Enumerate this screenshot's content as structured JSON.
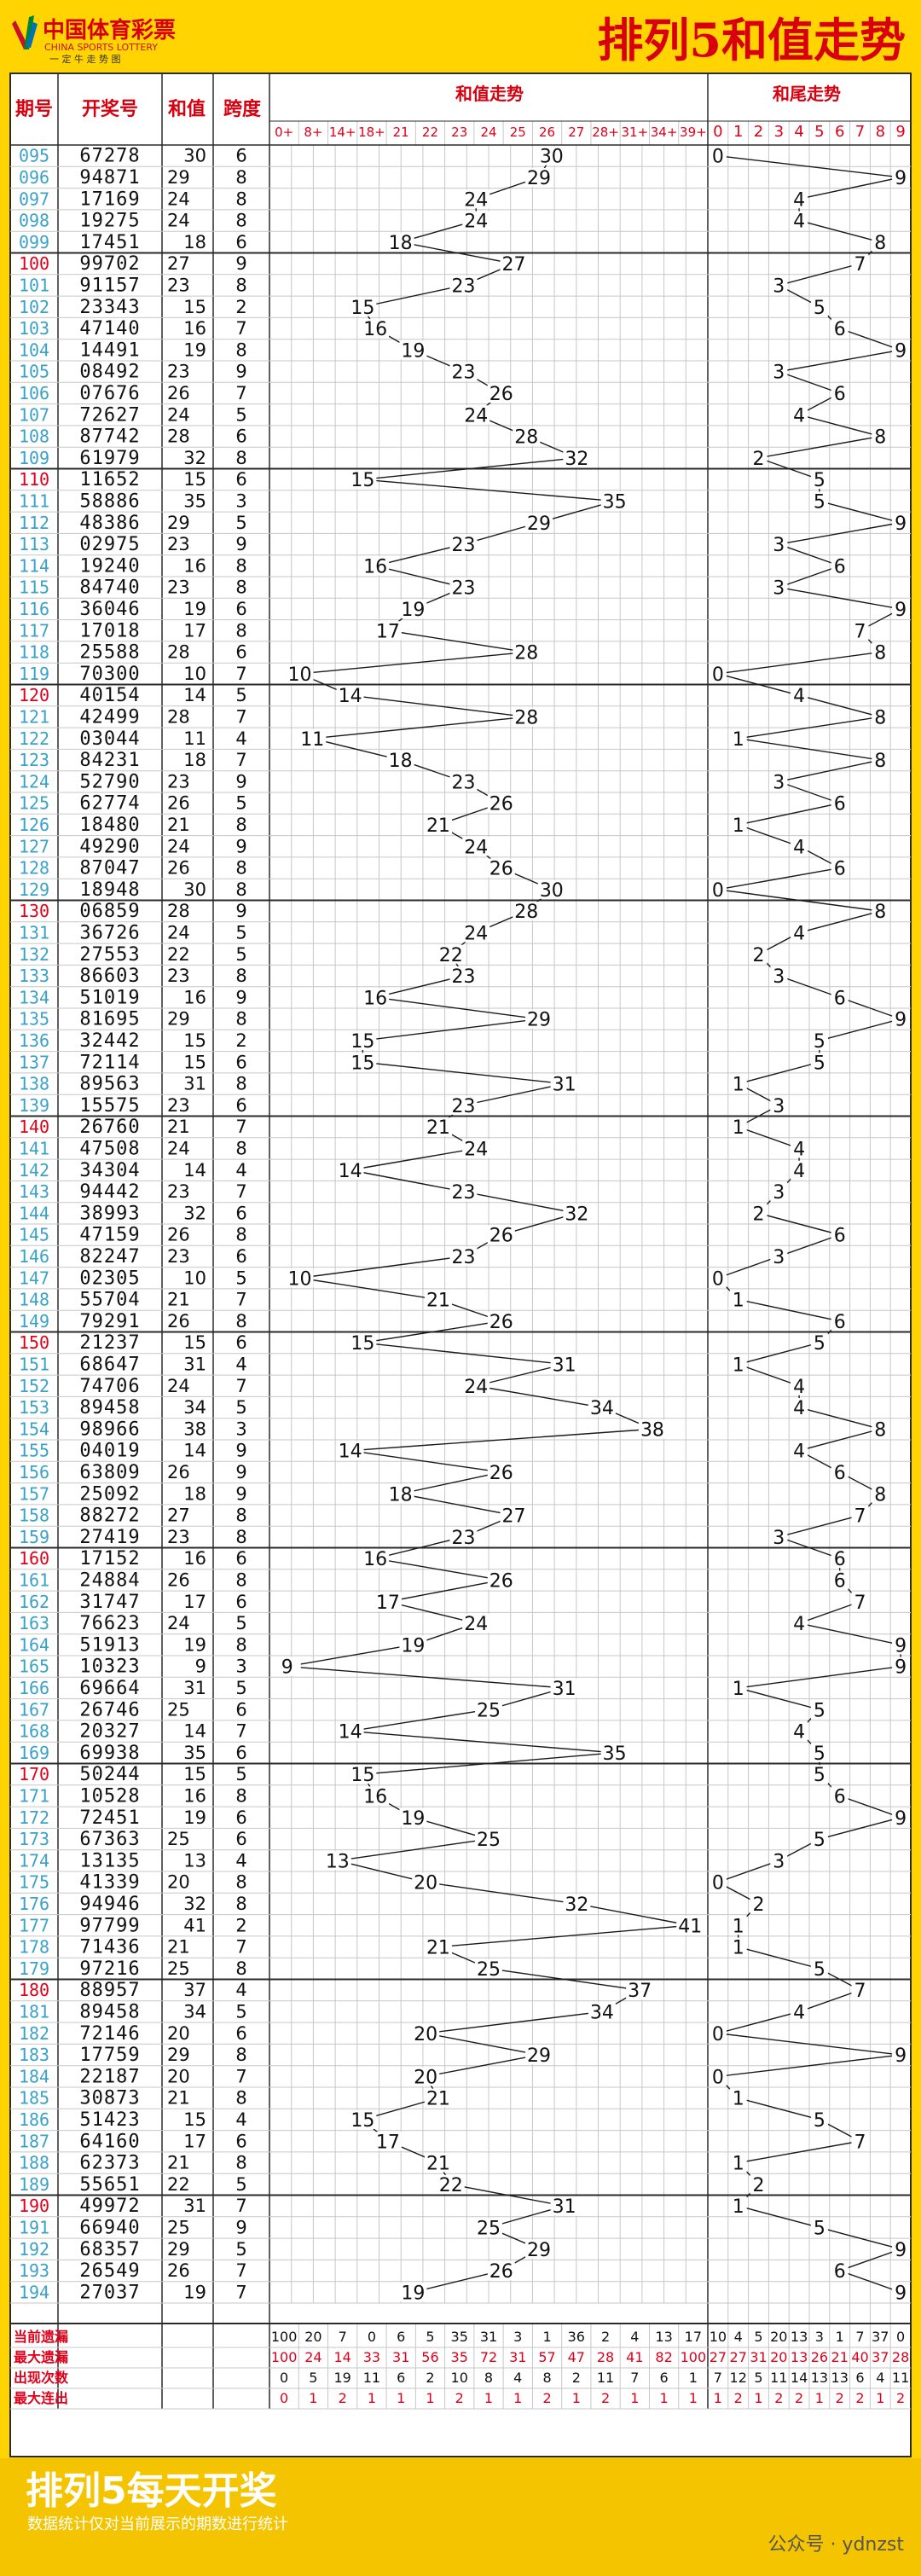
{
  "header": {
    "logo_cn": "中国体育彩票",
    "logo_en": "CHINA SPORTS LOTTERY",
    "logo_slogan": "一 定 牛 走 势 图",
    "title": "排列5和值走势"
  },
  "table_headers": {
    "period": "期号",
    "draw": "开奖号",
    "sum": "和值",
    "span": "跨度",
    "sum_trend": "和值走势",
    "tail_trend": "和尾走势"
  },
  "sum_zones": [
    "0+",
    "8+",
    "14+",
    "18+",
    "21",
    "22",
    "23",
    "24",
    "25",
    "26",
    "27",
    "28+",
    "31+",
    "34+",
    "39+"
  ],
  "tail_zones": [
    "0",
    "1",
    "2",
    "3",
    "4",
    "5",
    "6",
    "7",
    "8",
    "9"
  ],
  "chart_data": {
    "type": "line",
    "periods": [
      "095",
      "096",
      "097",
      "098",
      "099",
      "100",
      "101",
      "102",
      "103",
      "104",
      "105",
      "106",
      "107",
      "108",
      "109",
      "110",
      "111",
      "112",
      "113",
      "114",
      "115",
      "116",
      "117",
      "118",
      "119",
      "120",
      "121",
      "122",
      "123",
      "124",
      "125",
      "126",
      "127",
      "128",
      "129",
      "130",
      "131",
      "132",
      "133",
      "134",
      "135",
      "136",
      "137",
      "138",
      "139",
      "140",
      "141",
      "142",
      "143",
      "144",
      "145",
      "146",
      "147",
      "148",
      "149",
      "150",
      "151",
      "152",
      "153",
      "154",
      "155",
      "156",
      "157",
      "158",
      "159",
      "160",
      "161",
      "162",
      "163",
      "164",
      "165",
      "166",
      "167",
      "168",
      "169",
      "170",
      "171",
      "172",
      "173",
      "174",
      "175",
      "176",
      "177",
      "178",
      "179",
      "180",
      "181",
      "182",
      "183",
      "184",
      "185",
      "186",
      "187",
      "188",
      "189",
      "190",
      "191",
      "192",
      "193",
      "194"
    ],
    "draws": [
      "67278",
      "94871",
      "17169",
      "19275",
      "17451",
      "99702",
      "91157",
      "23343",
      "47140",
      "14491",
      "08492",
      "07676",
      "72627",
      "87742",
      "61979",
      "11652",
      "58886",
      "48386",
      "02975",
      "19240",
      "84740",
      "36046",
      "17018",
      "25588",
      "70300",
      "40154",
      "42499",
      "03044",
      "84231",
      "52790",
      "62774",
      "18480",
      "49290",
      "87047",
      "18948",
      "06859",
      "36726",
      "27553",
      "86603",
      "51019",
      "81695",
      "32442",
      "72114",
      "89563",
      "15575",
      "26760",
      "47508",
      "34304",
      "94442",
      "38993",
      "47159",
      "82247",
      "02305",
      "55704",
      "79291",
      "21237",
      "68647",
      "74706",
      "89458",
      "98966",
      "04019",
      "63809",
      "25092",
      "88272",
      "27419",
      "17152",
      "24884",
      "31747",
      "76623",
      "51913",
      "10323",
      "69664",
      "26746",
      "20327",
      "69938",
      "50244",
      "10528",
      "72451",
      "67363",
      "13135",
      "41339",
      "94946",
      "97799",
      "71436",
      "97216",
      "88957",
      "89458",
      "72146",
      "17759",
      "22187",
      "30873",
      "51423",
      "64160",
      "62373",
      "55651",
      "49972",
      "66940",
      "68357",
      "26549",
      "27037"
    ],
    "sum": [
      30,
      29,
      24,
      24,
      18,
      27,
      23,
      15,
      16,
      19,
      23,
      26,
      24,
      28,
      32,
      15,
      35,
      29,
      23,
      16,
      23,
      19,
      17,
      28,
      10,
      14,
      28,
      11,
      18,
      23,
      26,
      21,
      24,
      26,
      30,
      28,
      24,
      22,
      23,
      16,
      29,
      15,
      15,
      31,
      23,
      21,
      24,
      14,
      23,
      32,
      26,
      23,
      10,
      21,
      26,
      15,
      31,
      24,
      34,
      38,
      14,
      26,
      18,
      27,
      23,
      16,
      26,
      17,
      24,
      19,
      9,
      31,
      25,
      14,
      35,
      15,
      16,
      19,
      25,
      13,
      20,
      32,
      41,
      21,
      25,
      37,
      34,
      20,
      29,
      20,
      21,
      15,
      17,
      21,
      22,
      31,
      25,
      29,
      26,
      19
    ],
    "span": [
      6,
      8,
      8,
      8,
      6,
      9,
      8,
      2,
      7,
      8,
      9,
      7,
      5,
      6,
      8,
      6,
      3,
      5,
      9,
      8,
      8,
      6,
      8,
      6,
      7,
      5,
      7,
      4,
      7,
      9,
      5,
      8,
      9,
      8,
      8,
      9,
      5,
      5,
      8,
      9,
      8,
      2,
      6,
      8,
      6,
      7,
      8,
      4,
      7,
      6,
      8,
      6,
      5,
      7,
      8,
      6,
      4,
      7,
      5,
      3,
      9,
      9,
      9,
      8,
      8,
      6,
      8,
      6,
      5,
      8,
      3,
      5,
      6,
      7,
      6,
      5,
      8,
      6,
      6,
      4,
      8,
      8,
      2,
      7,
      8,
      4,
      5,
      6,
      8,
      7,
      8,
      4,
      6,
      8,
      5,
      7,
      9,
      5,
      7,
      7
    ],
    "tail": [
      0,
      9,
      4,
      4,
      8,
      7,
      3,
      5,
      6,
      9,
      3,
      6,
      4,
      8,
      2,
      5,
      5,
      9,
      3,
      6,
      3,
      9,
      7,
      8,
      0,
      4,
      8,
      1,
      8,
      3,
      6,
      1,
      4,
      6,
      0,
      8,
      4,
      2,
      3,
      6,
      9,
      5,
      5,
      1,
      3,
      1,
      4,
      4,
      3,
      2,
      6,
      3,
      0,
      1,
      6,
      5,
      1,
      4,
      4,
      8,
      4,
      6,
      8,
      7,
      3,
      6,
      6,
      7,
      4,
      9,
      9,
      1,
      5,
      4,
      5,
      5,
      6,
      9,
      5,
      3,
      0,
      2,
      1,
      1,
      5,
      7,
      4,
      0,
      9,
      0,
      1,
      5,
      7,
      1,
      2,
      1,
      5,
      9,
      6,
      9
    ],
    "stats": [
      {
        "label": "当前遗漏",
        "sum": [
          100,
          20,
          7,
          0,
          6,
          5,
          35,
          31,
          3,
          1,
          36,
          2,
          4,
          13,
          17
        ],
        "tail": [
          10,
          4,
          5,
          20,
          13,
          3,
          1,
          7,
          37,
          0
        ]
      },
      {
        "label": "最大遗漏",
        "sum": [
          100,
          24,
          14,
          33,
          31,
          56,
          35,
          72,
          31,
          57,
          47,
          28,
          41,
          82,
          100
        ],
        "tail": [
          27,
          27,
          31,
          20,
          13,
          26,
          21,
          40,
          37,
          28
        ]
      },
      {
        "label": "出现次数",
        "sum": [
          0,
          5,
          19,
          11,
          6,
          2,
          10,
          8,
          4,
          8,
          2,
          11,
          7,
          6,
          1
        ],
        "tail": [
          7,
          12,
          5,
          11,
          14,
          13,
          13,
          6,
          4,
          11
        ]
      },
      {
        "label": "最大连出",
        "sum": [
          0,
          1,
          2,
          1,
          1,
          1,
          2,
          1,
          1,
          2,
          1,
          2,
          1,
          1,
          1
        ],
        "tail": [
          1,
          2,
          1,
          2,
          2,
          1,
          2,
          2,
          1,
          2
        ]
      }
    ]
  },
  "footer": {
    "banner": "排列5每天开奖",
    "note": "数据统计仅对当前展示的期数进行统计",
    "watermark": "公众号 · ydnzst"
  },
  "colors": {
    "background": "#ffd400",
    "header_text": "#d8000f",
    "grid_line": "#c7c7c7",
    "group_line": "#2a2a2a",
    "period_text": "#3aa1c9",
    "red_text": "#e0001a",
    "footer_bg": "#f5c400"
  }
}
